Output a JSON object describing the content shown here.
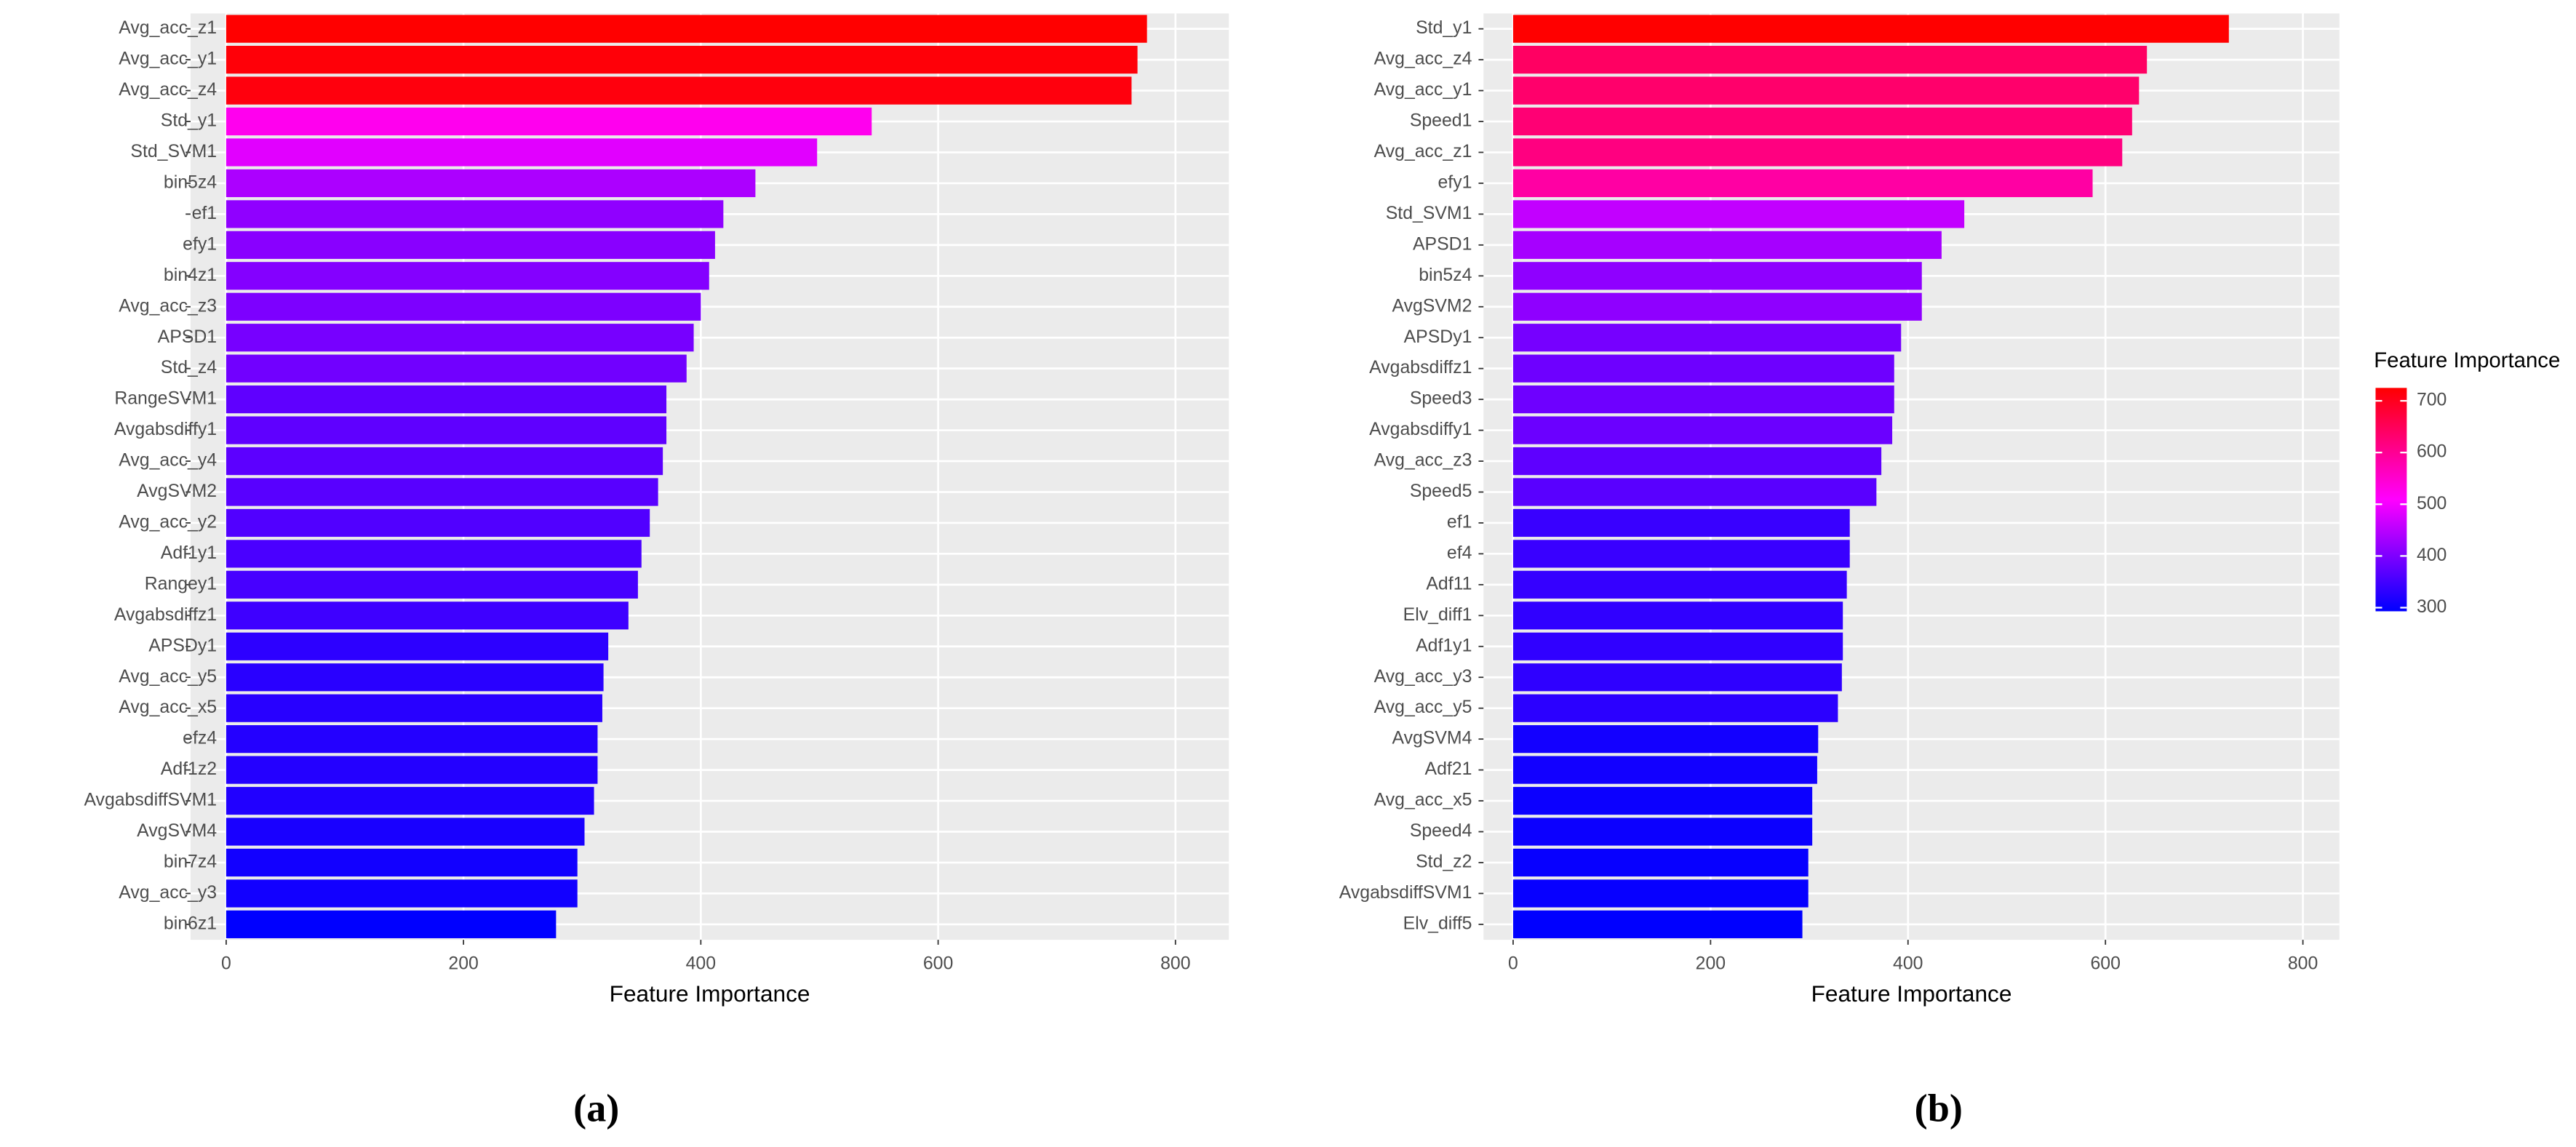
{
  "chart_data": [
    {
      "type": "bar",
      "orientation": "horizontal",
      "xlabel": "Feature Importance",
      "caption": "(a)",
      "categories": [
        "Avg_acc_z1",
        "Avg_acc_y1",
        "Avg_acc_z4",
        "Std_y1",
        "Std_SVM1",
        "bin5z4",
        "ef1",
        "efy1",
        "bin4z1",
        "Avg_acc_z3",
        "APSD1",
        "Std_z4",
        "RangeSVM1",
        "Avgabsdiffy1",
        "Avg_acc_y4",
        "AvgSVM2",
        "Avg_acc_y2",
        "Adf1y1",
        "Rangey1",
        "Avgabsdiffz1",
        "APSDy1",
        "Avg_acc_y5",
        "Avg_acc_x5",
        "efz4",
        "Adf1z2",
        "AvgabsdiffSVM1",
        "AvgSVM4",
        "bin7z4",
        "Avg_acc_y3",
        "bin6z1"
      ],
      "values": [
        776,
        768,
        763,
        544,
        498,
        446,
        419,
        412,
        407,
        400,
        394,
        388,
        371,
        371,
        368,
        364,
        357,
        350,
        347,
        339,
        322,
        318,
        317,
        313,
        313,
        310,
        302,
        296,
        296,
        278
      ],
      "xlim": [
        -30,
        845
      ],
      "xticks": [
        0,
        200,
        400,
        600,
        800
      ],
      "grid": true,
      "color_scale": [
        "#0000ff",
        "#ff00ff",
        "#ff0000"
      ]
    },
    {
      "type": "bar",
      "orientation": "horizontal",
      "xlabel": "Feature Importance",
      "caption": "(b)",
      "categories": [
        "Std_y1",
        "Avg_acc_z4",
        "Avg_acc_y1",
        "Speed1",
        "Avg_acc_z1",
        "efy1",
        "Std_SVM1",
        "APSD1",
        "bin5z4",
        "AvgSVM2",
        "APSDy1",
        "Avgabsdiffz1",
        "Speed3",
        "Avgabsdiffy1",
        "Avg_acc_z3",
        "Speed5",
        "ef1",
        "ef4",
        "Adf11",
        "Elv_diff1",
        "Adf1y1",
        "Avg_acc_y3",
        "Avg_acc_y5",
        "AvgSVM4",
        "Adf21",
        "Avg_acc_x5",
        "Speed4",
        "Std_z2",
        "AvgabsdiffSVM1",
        "Elv_diff5"
      ],
      "values": [
        725,
        642,
        634,
        627,
        617,
        587,
        457,
        434,
        414,
        414,
        393,
        386,
        386,
        384,
        373,
        368,
        341,
        341,
        338,
        334,
        334,
        333,
        329,
        309,
        308,
        303,
        303,
        299,
        299,
        293
      ],
      "xlim": [
        -30,
        837
      ],
      "xticks": [
        0,
        200,
        400,
        600,
        800
      ],
      "grid": true,
      "color_scale": [
        "#0000ff",
        "#ff00ff",
        "#ff0000"
      ],
      "legend": {
        "title": "Feature Importance",
        "ticks": [
          300,
          400,
          500,
          600,
          700
        ]
      }
    }
  ]
}
